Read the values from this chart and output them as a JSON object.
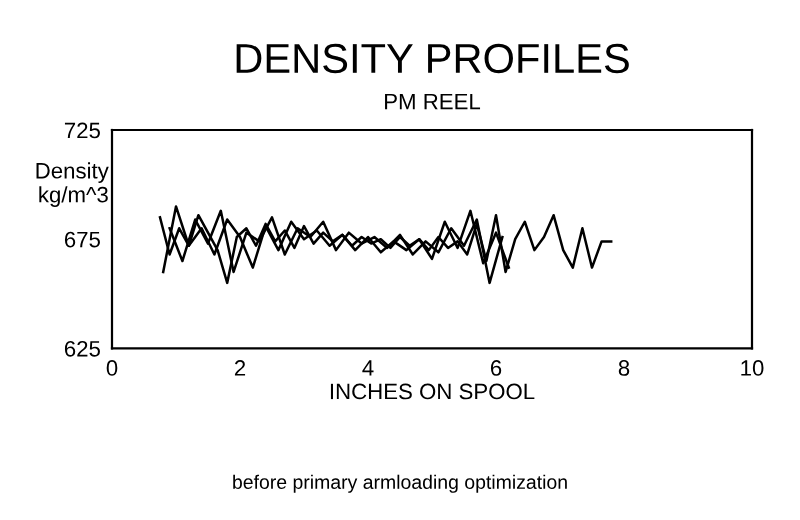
{
  "chart_data": {
    "type": "line",
    "title": "DENSITY PROFILES",
    "subtitle": "PM REEL",
    "ylabel": "Density\nkg/m^3",
    "xlabel": "INCHES ON SPOOL",
    "annotations": [
      "before primary armloading optimization"
    ],
    "xlim": [
      0,
      10
    ],
    "xticks": [
      0,
      2,
      4,
      6,
      8,
      10
    ],
    "ylim": [
      625,
      725
    ],
    "yticks": [
      625,
      675,
      725
    ],
    "grid": false,
    "marker": "none",
    "line_style": "solid",
    "series": [
      {
        "color": "#000000",
        "x": [
          0.75,
          0.9,
          1.05,
          1.2,
          1.35,
          1.5,
          1.65,
          1.8,
          1.95,
          2.1,
          2.25,
          2.4,
          2.55,
          2.7,
          2.85,
          3.0,
          3.15,
          3.3,
          3.45,
          3.6,
          3.75,
          3.9,
          4.05,
          4.2,
          4.35,
          4.5,
          4.65,
          4.8,
          4.95,
          5.1,
          5.25,
          5.4,
          5.55,
          5.7,
          5.85,
          6.0,
          6.15,
          6.3,
          6.45,
          6.6,
          6.75,
          6.9,
          7.05,
          7.2,
          7.35,
          7.5,
          7.65,
          7.8
        ],
        "values": [
          685,
          668,
          680,
          672,
          686,
          678,
          670,
          655,
          676,
          680,
          672,
          682,
          674,
          679,
          671,
          681,
          673,
          678,
          674,
          677,
          672,
          676,
          673,
          675,
          671,
          676,
          672,
          675,
          670,
          676,
          671,
          674,
          668,
          682,
          665,
          686,
          660,
          675,
          683,
          670,
          676,
          686,
          670,
          662,
          680,
          662,
          674,
          674
        ]
      },
      {
        "color": "#000000",
        "x": [
          0.8,
          1.0,
          1.2,
          1.4,
          1.6,
          1.8,
          2.0,
          2.2,
          2.4,
          2.6,
          2.8,
          3.0,
          3.2,
          3.4,
          3.6,
          3.8,
          4.0,
          4.2,
          4.4,
          4.6,
          4.8,
          5.0,
          5.2,
          5.4,
          5.6,
          5.8,
          6.0,
          6.2
        ],
        "values": [
          660,
          690,
          672,
          680,
          668,
          684,
          676,
          662,
          681,
          670,
          683,
          675,
          679,
          672,
          677,
          670,
          676,
          669,
          674,
          670,
          675,
          666,
          683,
          671,
          688,
          664,
          678,
          662
        ]
      },
      {
        "color": "#000000",
        "x": [
          0.9,
          1.1,
          1.3,
          1.5,
          1.7,
          1.9,
          2.1,
          2.3,
          2.5,
          2.7,
          2.9,
          3.1,
          3.3,
          3.5,
          3.7,
          3.9,
          4.1,
          4.3,
          4.5,
          4.7,
          4.9,
          5.1,
          5.3,
          5.5,
          5.7,
          5.9,
          6.1
        ],
        "values": [
          680,
          665,
          684,
          673,
          688,
          660,
          678,
          674,
          685,
          668,
          680,
          676,
          683,
          670,
          678,
          673,
          676,
          671,
          677,
          668,
          674,
          669,
          680,
          672,
          684,
          655,
          676
        ]
      }
    ]
  }
}
